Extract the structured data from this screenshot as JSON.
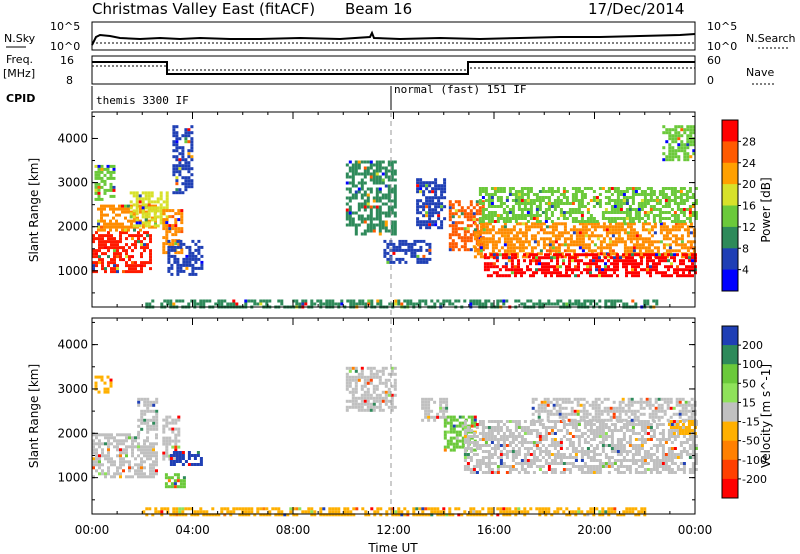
{
  "header": {
    "title": "Christmas Valley East (fitACF)",
    "beam": "Beam 16",
    "date": "17/Dec/2014"
  },
  "strips": {
    "nsky_label": "N.Sky",
    "nsky_ticks": [
      "10^5",
      "10^0"
    ],
    "nsearch_label": "N.Search",
    "nsearch_ticks": [
      "10^5",
      "10^0"
    ],
    "freq_label": "Freq.",
    "freq_unit": "[MHz]",
    "freq_ticks": [
      "16",
      "8"
    ],
    "nave_label": "Nave",
    "nave_ticks": [
      "60",
      "0"
    ],
    "cpid_label": "CPID",
    "cpid_modes": [
      {
        "label": "themis 3300 IF",
        "start_hour": 0
      },
      {
        "label": "normal (fast) 151 IF",
        "start_hour": 12
      }
    ]
  },
  "axes": {
    "ylabel": "Slant Range [km]",
    "xlabel": "Time UT",
    "xticks": [
      "00:00",
      "04:00",
      "08:00",
      "12:00",
      "16:00",
      "20:00",
      "00:00"
    ],
    "yticks": [
      "1000",
      "2000",
      "3000",
      "4000"
    ]
  },
  "chart_data": [
    {
      "type": "heatmap",
      "title": "",
      "ylabel": "Slant Range [km]",
      "xlabel": "Time UT",
      "x_range_hours": [
        0,
        24
      ],
      "ylim": [
        180,
        4600
      ],
      "colorbar": {
        "label": "Power [dB]",
        "ticks": [
          4,
          8,
          12,
          16,
          20,
          24,
          28
        ],
        "colors": [
          "#0000ff",
          "#1f3fb5",
          "#2e8a5a",
          "#6bc93a",
          "#d7e12a",
          "#ffa000",
          "#ff5a00",
          "#ff0000"
        ]
      },
      "regions": [
        {
          "t0": 0.0,
          "t1": 2.3,
          "r0": 1000,
          "r1": 1900,
          "color": "#ff1a00"
        },
        {
          "t0": 0.2,
          "t1": 2.5,
          "r0": 1900,
          "r1": 2500,
          "color": "#ff8c00"
        },
        {
          "t0": 0.1,
          "t1": 0.9,
          "r0": 2600,
          "r1": 3400,
          "color": "#6bc93a"
        },
        {
          "t0": 1.5,
          "t1": 3.0,
          "r0": 2000,
          "r1": 2800,
          "color": "#d7e12a"
        },
        {
          "t0": 2.8,
          "t1": 3.6,
          "r0": 1400,
          "r1": 2400,
          "color": "#ff8c00"
        },
        {
          "t0": 3.0,
          "t1": 4.4,
          "r0": 900,
          "r1": 1700,
          "color": "#1f3fb5"
        },
        {
          "t0": 3.2,
          "t1": 4.0,
          "r0": 2800,
          "r1": 4300,
          "color": "#1f3fb5"
        },
        {
          "t0": 10.1,
          "t1": 12.1,
          "r0": 1800,
          "r1": 3500,
          "color": "#2e8a5a"
        },
        {
          "t0": 11.6,
          "t1": 13.4,
          "r0": 1200,
          "r1": 1700,
          "color": "#1f3fb5"
        },
        {
          "t0": 12.9,
          "t1": 14.0,
          "r0": 2000,
          "r1": 3100,
          "color": "#1f3fb5"
        },
        {
          "t0": 14.2,
          "t1": 15.6,
          "r0": 1500,
          "r1": 2600,
          "color": "#ff5a00"
        },
        {
          "t0": 15.2,
          "t1": 24.0,
          "r0": 1300,
          "r1": 2100,
          "color": "#ff8c00"
        },
        {
          "t0": 15.4,
          "t1": 24.0,
          "r0": 2100,
          "r1": 2900,
          "color": "#6bc93a"
        },
        {
          "t0": 15.6,
          "t1": 24.0,
          "r0": 900,
          "r1": 1400,
          "color": "#ff0000"
        },
        {
          "t0": 2.0,
          "t1": 22.5,
          "r0": 180,
          "r1": 350,
          "color": "#2e8a5a"
        },
        {
          "t0": 22.7,
          "t1": 24.0,
          "r0": 3500,
          "r1": 4300,
          "color": "#6bc93a"
        }
      ]
    },
    {
      "type": "heatmap",
      "title": "",
      "ylabel": "Slant Range [km]",
      "xlabel": "Time UT",
      "x_range_hours": [
        0,
        24
      ],
      "ylim": [
        180,
        4600
      ],
      "colorbar": {
        "label": "Velocity [m s^-1]",
        "ticks": [
          200,
          100,
          50,
          15,
          -15,
          -50,
          -100,
          -200
        ],
        "colors": [
          "#1f3fb5",
          "#2e8a5a",
          "#6bc93a",
          "#8fe25a",
          "#c0c0c0",
          "#ffb000",
          "#ff8000",
          "#ff4000",
          "#ff0000"
        ]
      },
      "regions": [
        {
          "t0": 0.0,
          "t1": 2.6,
          "r0": 1000,
          "r1": 2000,
          "color": "#c0c0c0"
        },
        {
          "t0": 1.8,
          "t1": 2.6,
          "r0": 2000,
          "r1": 2800,
          "color": "#c0c0c0"
        },
        {
          "t0": 0.1,
          "t1": 0.8,
          "r0": 2900,
          "r1": 3300,
          "color": "#ffb000"
        },
        {
          "t0": 2.8,
          "t1": 3.5,
          "r0": 1400,
          "r1": 2400,
          "color": "#c0c0c0"
        },
        {
          "t0": 3.1,
          "t1": 4.3,
          "r0": 1300,
          "r1": 1600,
          "color": "#1f3fb5"
        },
        {
          "t0": 2.9,
          "t1": 3.7,
          "r0": 800,
          "r1": 1100,
          "color": "#6bc93a"
        },
        {
          "t0": 10.1,
          "t1": 12.1,
          "r0": 2500,
          "r1": 3500,
          "color": "#c0c0c0"
        },
        {
          "t0": 13.1,
          "t1": 14.1,
          "r0": 2300,
          "r1": 2800,
          "color": "#c0c0c0"
        },
        {
          "t0": 14.0,
          "t1": 15.3,
          "r0": 1600,
          "r1": 2400,
          "color": "#6bc93a"
        },
        {
          "t0": 14.8,
          "t1": 24.0,
          "r0": 1100,
          "r1": 2300,
          "color": "#c0c0c0"
        },
        {
          "t0": 17.5,
          "t1": 24.0,
          "r0": 2300,
          "r1": 2800,
          "color": "#c0c0c0"
        },
        {
          "t0": 23.0,
          "t1": 24.0,
          "r0": 2000,
          "r1": 2300,
          "color": "#ffb000"
        },
        {
          "t0": 2.0,
          "t1": 22.0,
          "r0": 180,
          "r1": 330,
          "color": "#ffb000"
        }
      ]
    }
  ]
}
